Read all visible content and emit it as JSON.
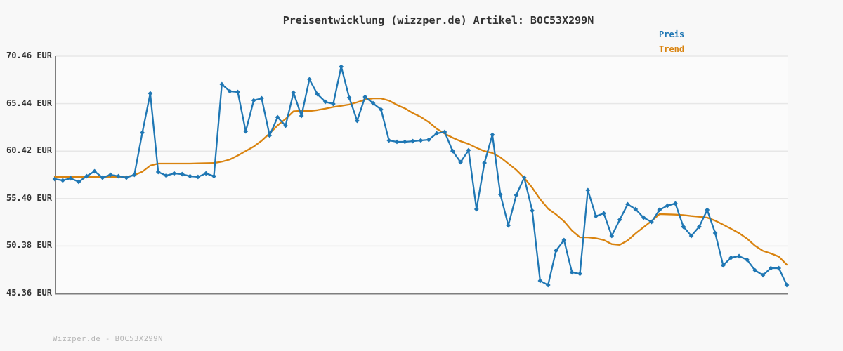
{
  "title": "Preisentwicklung (wizzper.de) Artikel: B0C53X299N",
  "footer": "Wizzper.de - B0C53X299N",
  "legend": [
    {
      "label": "Preis",
      "color": "#1f77b4"
    },
    {
      "label": "Trend",
      "color": "#d9830f"
    }
  ],
  "colors": {
    "figure_background": "#f8f8f8",
    "plot_background": "#fbfbfb",
    "axis": "#7e7e7e",
    "grid": "#e7e7e7",
    "price_line": "#1f77b4",
    "trend_line": "#d9830f"
  },
  "chart_data": {
    "type": "line",
    "title": "Preisentwicklung (wizzper.de) Artikel: B0C53X299N",
    "xlabel": "",
    "ylabel": "EUR",
    "ylim": [
      45.36,
      70.46
    ],
    "y_ticks": [
      "70.46 EUR",
      "65.44 EUR",
      "60.42 EUR",
      "55.40 EUR",
      "50.38 EUR",
      "45.36 EUR"
    ],
    "y_tick_values": [
      70.46,
      65.44,
      60.42,
      55.4,
      50.38,
      45.36
    ],
    "x_tick_labels": [],
    "grid": "horizontal",
    "legend_position": "top-right",
    "series": [
      {
        "name": "Preis",
        "color": "#1f77b4",
        "marker": "diamond",
        "values": [
          57.46,
          57.32,
          57.54,
          57.17,
          57.76,
          58.28,
          57.61,
          57.91,
          57.76,
          57.61,
          57.91,
          62.37,
          66.52,
          58.21,
          57.83,
          58.06,
          57.98,
          57.76,
          57.69,
          58.06,
          57.76,
          67.49,
          66.75,
          66.67,
          62.51,
          65.78,
          66.0,
          62.07,
          64.0,
          63.11,
          66.6,
          64.15,
          68.01,
          66.45,
          65.63,
          65.41,
          69.35,
          66.08,
          63.63,
          66.15,
          65.48,
          64.82,
          61.55,
          61.4,
          61.4,
          61.47,
          61.55,
          61.62,
          62.29,
          62.44,
          60.43,
          59.25,
          60.51,
          54.27,
          59.17,
          62.14,
          55.83,
          52.56,
          55.76,
          57.61,
          54.12,
          46.7,
          46.25,
          49.89,
          51.0,
          47.59,
          47.44,
          56.28,
          53.53,
          53.83,
          51.45,
          53.16,
          54.79,
          54.27,
          53.38,
          52.93,
          54.2,
          54.64,
          54.87,
          52.42,
          51.45,
          52.42,
          54.2,
          51.75,
          48.33,
          49.15,
          49.3,
          48.93,
          47.81,
          47.29,
          48.03,
          48.03,
          46.25
        ]
      },
      {
        "name": "Trend",
        "color": "#d9830f",
        "marker": "none",
        "values": [
          57.7,
          57.7,
          57.7,
          57.7,
          57.7,
          57.7,
          57.7,
          57.7,
          57.7,
          57.7,
          57.87,
          58.24,
          58.88,
          59.1,
          59.1,
          59.1,
          59.1,
          59.1,
          59.12,
          59.14,
          59.16,
          59.3,
          59.53,
          59.95,
          60.43,
          60.9,
          61.52,
          62.29,
          63.13,
          63.82,
          64.63,
          64.68,
          64.65,
          64.76,
          64.91,
          65.08,
          65.21,
          65.34,
          65.58,
          65.86,
          66.0,
          66.0,
          65.76,
          65.31,
          64.94,
          64.44,
          64.04,
          63.49,
          62.78,
          62.26,
          61.83,
          61.47,
          61.18,
          60.77,
          60.41,
          60.22,
          59.76,
          59.1,
          58.43,
          57.59,
          56.54,
          55.32,
          54.32,
          53.72,
          52.99,
          52.01,
          51.3,
          51.29,
          51.2,
          51.01,
          50.58,
          50.5,
          50.97,
          51.71,
          52.37,
          53.02,
          53.75,
          53.73,
          53.7,
          53.65,
          53.55,
          53.48,
          53.38,
          53.06,
          52.64,
          52.2,
          51.74,
          51.16,
          50.41,
          49.87,
          49.59,
          49.25,
          48.4
        ]
      }
    ]
  }
}
